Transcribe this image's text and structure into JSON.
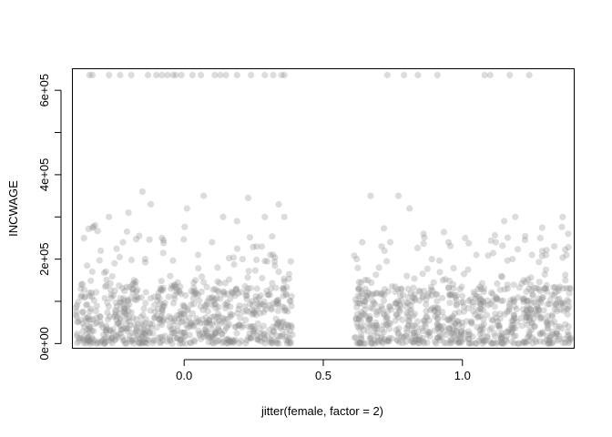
{
  "chart_data": {
    "type": "scatter",
    "title": "",
    "xlabel": "jitter(female, factor = 2)",
    "ylabel": "INCWAGE",
    "xlim": [
      -0.4,
      1.4
    ],
    "ylim": [
      -10000,
      650000
    ],
    "x_ticks": [
      {
        "value": 0.0,
        "label": "0.0"
      },
      {
        "value": 0.5,
        "label": "0.5"
      },
      {
        "value": 1.0,
        "label": "1.0"
      }
    ],
    "y_ticks": [
      {
        "value": 0,
        "label": "0e+00"
      },
      {
        "value": 100000,
        "label": ""
      },
      {
        "value": 200000,
        "label": "2e+05"
      },
      {
        "value": 300000,
        "label": ""
      },
      {
        "value": 400000,
        "label": "4e+05"
      },
      {
        "value": 500000,
        "label": ""
      },
      {
        "value": 600000,
        "label": "6e+05"
      }
    ],
    "point_color": "#8c8c8c",
    "point_opacity": 0.3,
    "series": [
      {
        "group": 0,
        "x_range": [
          -0.39,
          0.39
        ],
        "points": [
          [
            -0.34,
            636000
          ],
          [
            -0.33,
            636000
          ],
          [
            -0.27,
            636000
          ],
          [
            -0.23,
            636000
          ],
          [
            -0.19,
            636000
          ],
          [
            -0.13,
            636000
          ],
          [
            -0.1,
            636000
          ],
          [
            -0.08,
            636000
          ],
          [
            -0.06,
            636000
          ],
          [
            -0.04,
            636000
          ],
          [
            -0.03,
            636000
          ],
          [
            -0.01,
            636000
          ],
          [
            0.03,
            636000
          ],
          [
            0.06,
            636000
          ],
          [
            0.11,
            636000
          ],
          [
            0.13,
            636000
          ],
          [
            0.15,
            636000
          ],
          [
            0.19,
            636000
          ],
          [
            0.24,
            636000
          ],
          [
            0.29,
            636000
          ],
          [
            0.32,
            636000
          ],
          [
            0.35,
            636000
          ],
          [
            0.36,
            636000
          ],
          [
            -0.15,
            360000
          ],
          [
            -0.12,
            330000
          ],
          [
            0.07,
            350000
          ],
          [
            0.23,
            345000
          ],
          [
            0.34,
            330000
          ],
          [
            -0.2,
            310000
          ],
          [
            0.01,
            320000
          ],
          [
            0.29,
            300000
          ],
          [
            -0.27,
            300000
          ],
          [
            0.14,
            300000
          ],
          [
            -0.32,
            280000
          ],
          [
            0.19,
            290000
          ],
          [
            0.36,
            300000
          ],
          [
            -0.36,
            250000
          ],
          [
            -0.08,
            250000
          ],
          [
            0.1,
            240000
          ],
          [
            -0.22,
            240000
          ],
          [
            0.26,
            230000
          ],
          [
            -0.3,
            220000
          ],
          [
            0.05,
            210000
          ],
          [
            0.31,
            210000
          ],
          [
            -0.14,
            200000
          ],
          [
            0.21,
            200000
          ],
          [
            -0.25,
            190000
          ],
          [
            0.12,
            180000
          ],
          [
            -0.33,
            170000
          ],
          [
            0.34,
            170000
          ],
          [
            -0.05,
            160000
          ],
          [
            0.28,
            155000
          ],
          [
            -0.18,
            150000
          ],
          [
            0.07,
            145000
          ],
          [
            -0.37,
            140000
          ]
        ]
      },
      {
        "group": 1,
        "x_range": [
          0.61,
          1.39
        ],
        "points": [
          [
            0.73,
            636000
          ],
          [
            0.79,
            636000
          ],
          [
            0.84,
            636000
          ],
          [
            0.91,
            636000
          ],
          [
            1.08,
            636000
          ],
          [
            1.1,
            636000
          ],
          [
            1.17,
            636000
          ],
          [
            1.24,
            636000
          ],
          [
            0.67,
            350000
          ],
          [
            0.77,
            350000
          ],
          [
            0.81,
            320000
          ],
          [
            1.15,
            290000
          ],
          [
            1.19,
            300000
          ],
          [
            1.36,
            300000
          ],
          [
            0.86,
            260000
          ],
          [
            1.01,
            250000
          ],
          [
            1.28,
            250000
          ],
          [
            1.38,
            260000
          ],
          [
            0.64,
            240000
          ],
          [
            0.95,
            240000
          ],
          [
            1.12,
            240000
          ],
          [
            1.33,
            230000
          ],
          [
            0.72,
            220000
          ],
          [
            1.05,
            210000
          ],
          [
            1.25,
            210000
          ],
          [
            0.62,
            200000
          ],
          [
            0.89,
            200000
          ],
          [
            1.18,
            200000
          ],
          [
            0.7,
            180000
          ],
          [
            1.02,
            175000
          ],
          [
            1.3,
            175000
          ],
          [
            0.8,
            160000
          ],
          [
            1.14,
            160000
          ],
          [
            0.66,
            150000
          ],
          [
            0.93,
            150000
          ],
          [
            1.22,
            150000
          ],
          [
            1.37,
            150000
          ]
        ]
      }
    ],
    "dense_band": {
      "y_range": [
        0,
        130000
      ],
      "count_per_group": 650
    }
  }
}
